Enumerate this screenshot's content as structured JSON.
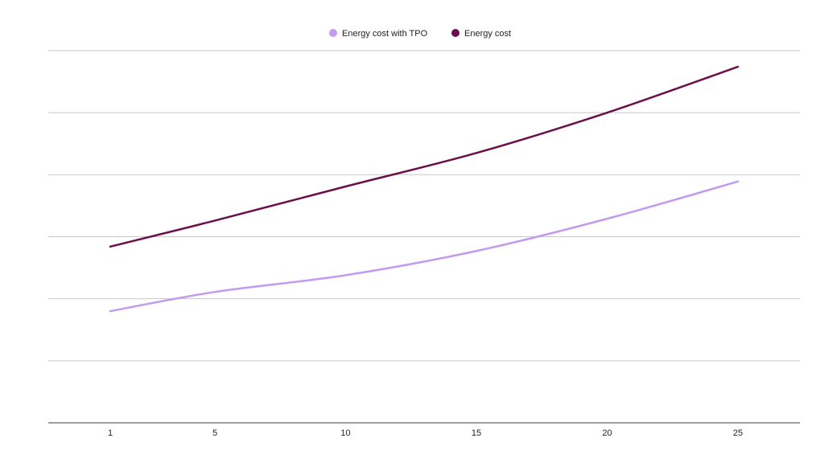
{
  "chart_data": {
    "type": "line",
    "title": "",
    "xlabel": "",
    "ylabel": "",
    "x_ticks": [
      1,
      5,
      10,
      15,
      20,
      25
    ],
    "xlim": [
      1,
      25
    ],
    "ylim": [
      0,
      6
    ],
    "y_gridlines": [
      1,
      2,
      3,
      4,
      5,
      6
    ],
    "y_tick_labels_shown": false,
    "grid": true,
    "legend_position": "top-center",
    "series": [
      {
        "name": "Energy cost with TPO",
        "color": "#c39af0",
        "x": [
          1,
          5,
          10,
          15,
          20,
          25
        ],
        "values": [
          1.8,
          2.11,
          2.38,
          2.77,
          3.29,
          3.89
        ]
      },
      {
        "name": "Energy cost",
        "color": "#6b0f4a",
        "x": [
          1,
          5,
          10,
          15,
          20,
          25
        ],
        "values": [
          2.84,
          3.26,
          3.81,
          4.35,
          5.0,
          5.74
        ]
      }
    ]
  }
}
